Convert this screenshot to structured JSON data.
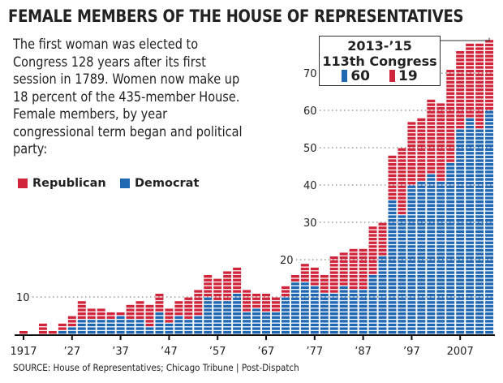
{
  "title": "FEMALE MEMBERS OF THE HOUSE OF REPRESENTATIVES",
  "intro": "The first woman was elected to Congress 128 years after its first session in 1789. Women now make up 18 percent of the 435-member House. Female members, by year congressional term began and political party:",
  "source": "SOURCE: House of Representatives; Chicago Tribune  |  Post-Dispatch",
  "callout": {
    "line1": "2013-’15",
    "line2": "113th Congress",
    "dem": "60",
    "rep": "19"
  },
  "colors": {
    "democrat": "#1f66b3",
    "republican": "#d0243a"
  },
  "chart_data": {
    "type": "bar",
    "stacked": true,
    "title": "FEMALE MEMBERS OF THE HOUSE OF REPRESENTATIVES",
    "legend": [
      "Republican",
      "Democrat"
    ],
    "legend_placement": "left",
    "x": [
      1917,
      1919,
      1921,
      1923,
      1925,
      1927,
      1929,
      1931,
      1933,
      1935,
      1937,
      1939,
      1941,
      1943,
      1945,
      1947,
      1949,
      1951,
      1953,
      1955,
      1957,
      1959,
      1961,
      1963,
      1965,
      1967,
      1969,
      1971,
      1973,
      1975,
      1977,
      1979,
      1981,
      1983,
      1985,
      1987,
      1989,
      1991,
      1993,
      1995,
      1997,
      1999,
      2001,
      2003,
      2005,
      2007,
      2009,
      2011,
      2013
    ],
    "x_tick_labels": [
      "1917",
      "’27",
      "’37",
      "’47",
      "’57",
      "’67",
      "’77",
      "’87",
      "’97",
      "2007"
    ],
    "x_tick_values": [
      1917,
      1927,
      1937,
      1947,
      1957,
      1967,
      1977,
      1987,
      1997,
      2007
    ],
    "y_ticks": [
      10,
      20,
      30,
      40,
      50,
      60,
      70
    ],
    "ylim": [
      0,
      80
    ],
    "grid": "dotted horizontal",
    "series": [
      {
        "name": "Democrat",
        "values": [
          0,
          0,
          0,
          0,
          1,
          2,
          4,
          4,
          4,
          4,
          5,
          4,
          4,
          2,
          6,
          3,
          5,
          4,
          5,
          10,
          9,
          9,
          11,
          6,
          7,
          6,
          6,
          10,
          14,
          14,
          13,
          11,
          11,
          13,
          12,
          12,
          16,
          21,
          36,
          32,
          40,
          41,
          43,
          41,
          46,
          55,
          58,
          55,
          60
        ]
      },
      {
        "name": "Republican",
        "values": [
          1,
          0,
          3,
          1,
          2,
          3,
          5,
          3,
          3,
          2,
          1,
          4,
          5,
          6,
          5,
          4,
          4,
          6,
          7,
          6,
          6,
          8,
          7,
          6,
          4,
          5,
          4,
          3,
          2,
          5,
          5,
          5,
          10,
          9,
          11,
          11,
          13,
          9,
          12,
          18,
          17,
          17,
          20,
          21,
          25,
          21,
          20,
          23,
          19
        ]
      }
    ]
  }
}
